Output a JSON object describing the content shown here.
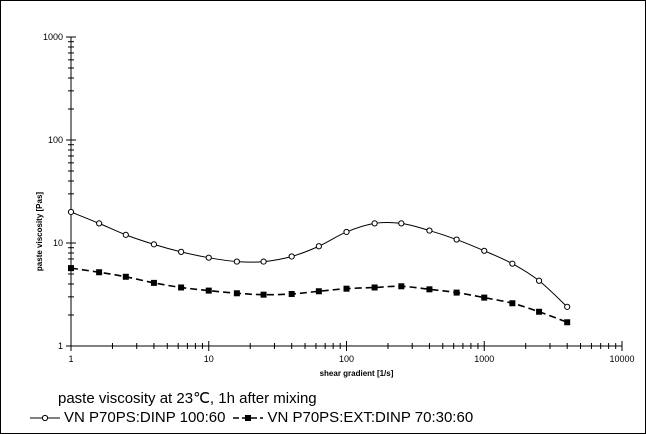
{
  "chart_data": {
    "type": "line",
    "title": "",
    "xlabel": "shear gradient  [1/s]",
    "ylabel": "paste viscosity  [Pas]",
    "xscale": "log",
    "yscale": "log",
    "xlim": [
      1,
      10000
    ],
    "ylim": [
      1,
      1000
    ],
    "grid": false,
    "legend_position": "bottom",
    "x_ticks": [
      "1",
      "10",
      "100",
      "1000",
      "10000"
    ],
    "y_ticks": [
      "1",
      "10",
      "100",
      "1000"
    ],
    "x": [
      1,
      1.6,
      2.5,
      4,
      6.3,
      10,
      16,
      25,
      40,
      63,
      100,
      160,
      250,
      400,
      630,
      1000,
      1600,
      2500,
      4000
    ],
    "series": [
      {
        "name": "VN P70PS:DINP  100:60",
        "marker": "open-circle",
        "line": "solid",
        "values": [
          20,
          15.5,
          12,
          9.7,
          8.2,
          7.2,
          6.6,
          6.6,
          7.4,
          9.3,
          12.8,
          15.5,
          15.5,
          13.2,
          10.8,
          8.4,
          6.3,
          4.3,
          2.4
        ]
      },
      {
        "name": "VN P70PS:EXT:DINP  70:30:60",
        "marker": "filled-square",
        "line": "dashed",
        "values": [
          5.7,
          5.2,
          4.7,
          4.1,
          3.7,
          3.45,
          3.25,
          3.15,
          3.2,
          3.4,
          3.6,
          3.7,
          3.8,
          3.55,
          3.3,
          2.95,
          2.6,
          2.15,
          1.7
        ]
      }
    ],
    "caption": "paste viscosity at 23℃, 1h after mixing"
  },
  "legend": {
    "series1_label": "VN P70PS:DINP  100:60",
    "series2_label": "VN P70PS:EXT:DINP  70:30:60"
  }
}
